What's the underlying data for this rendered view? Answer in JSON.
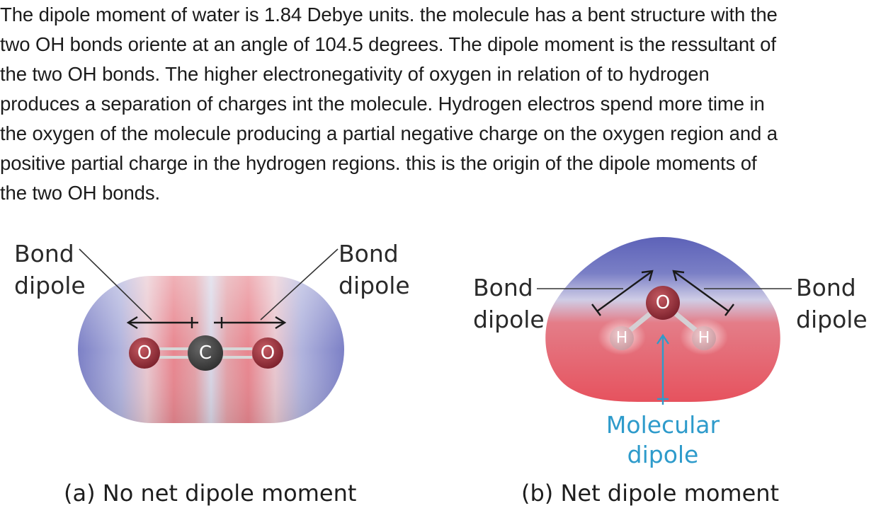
{
  "paragraph": {
    "lines": [
      "The dipole moment of water is 1.84 Debye units. the molecule has a bent structure with the",
      "two OH bonds oriente at an angle of 104.5 degrees. The dipole moment is the ressultant of",
      "the two OH bonds. The higher electronegativity of oxygen in relation of to hydrogen",
      "produces a separation of charges int the molecule. Hydrogen electros spend more time in",
      "the oxygen of the molecule producing a partial negative charge on the oxygen region and a",
      "positive partial charge in the hydrogen regions. this is the origin of the dipole moments of",
      "the two OH bonds."
    ]
  },
  "figure_a": {
    "left_label": [
      "Bond",
      "dipole"
    ],
    "right_label": [
      "Bond",
      "dipole"
    ],
    "atoms": [
      "O",
      "C",
      "O"
    ],
    "caption": "(a) No net dipole moment"
  },
  "figure_b": {
    "left_label": [
      "Bond",
      "dipole"
    ],
    "right_label": [
      "Bond",
      "dipole"
    ],
    "atoms": [
      "O",
      "H",
      "H"
    ],
    "molecular_label": [
      "Molecular",
      "dipole"
    ],
    "caption": "(b) Net dipole moment"
  },
  "colors": {
    "negative": "#d9334a",
    "positive": "#6f74c2",
    "molecular_dipole": "#2e9bcb"
  }
}
